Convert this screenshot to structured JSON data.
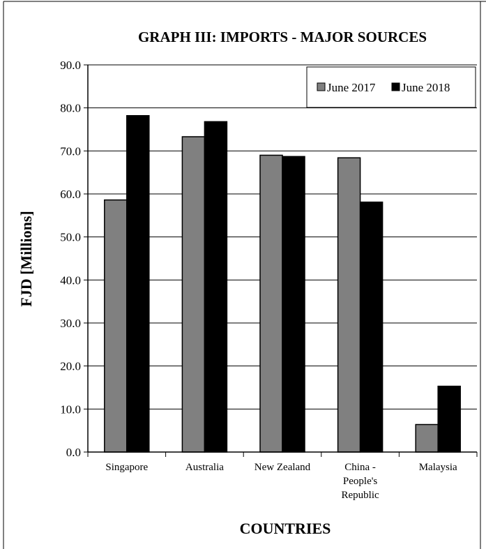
{
  "chart_data": {
    "type": "bar",
    "title": "GRAPH III: IMPORTS - MAJOR SOURCES",
    "xlabel": "COUNTRIES",
    "ylabel": "FJD [Millions]",
    "ylim": [
      0,
      90
    ],
    "yticks": [
      "0.0",
      "10.0",
      "20.0",
      "30.0",
      "40.0",
      "50.0",
      "60.0",
      "70.0",
      "80.0",
      "90.0"
    ],
    "grid": true,
    "legend_position": "top-right",
    "categories": [
      [
        "Singapore"
      ],
      [
        "Australia"
      ],
      [
        "New Zealand"
      ],
      [
        "China -",
        "People's",
        "Republic"
      ],
      [
        "Malaysia"
      ]
    ],
    "series": [
      {
        "name": "June 2017",
        "color": "#808080",
        "values": [
          58.6,
          73.3,
          69.0,
          68.4,
          6.4
        ]
      },
      {
        "name": "June 2018",
        "color": "#000000",
        "values": [
          78.2,
          76.8,
          68.7,
          58.1,
          15.3
        ]
      }
    ]
  }
}
